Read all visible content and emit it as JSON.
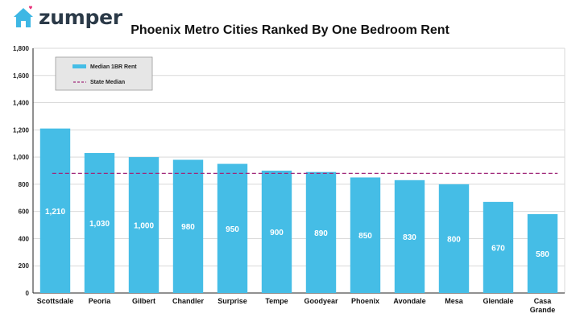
{
  "brand": {
    "name": "zumper",
    "icon": "house-heart-icon",
    "heart_color": "#e8317a",
    "house_color": "#3eb7e4"
  },
  "chart_data": {
    "type": "bar",
    "title": "Phoenix Metro Cities Ranked By One Bedroom Rent",
    "categories": [
      "Scottsdale",
      "Peoria",
      "Gilbert",
      "Chandler",
      "Surprise",
      "Tempe",
      "Goodyear",
      "Phoenix",
      "Avondale",
      "Mesa",
      "Glendale",
      "Casa Grande"
    ],
    "series": [
      {
        "name": "Median 1BR Rent",
        "values": [
          1210,
          1030,
          1000,
          980,
          950,
          900,
          890,
          850,
          830,
          800,
          670,
          580
        ],
        "color": "#45bde6"
      }
    ],
    "reference_line": {
      "name": "State Median",
      "value": 880,
      "color": "#a0287a",
      "style": "dashed"
    },
    "data_labels": [
      "1,210",
      "1,030",
      "1,000",
      "980",
      "950",
      "900",
      "890",
      "850",
      "830",
      "800",
      "670",
      "580"
    ],
    "yticks": [
      0,
      200,
      400,
      600,
      800,
      1000,
      1200,
      1400,
      1600,
      1800
    ],
    "ytick_labels": [
      "0",
      "200",
      "400",
      "600",
      "800",
      "1,000",
      "1,200",
      "1,400",
      "1,600",
      "1,800"
    ],
    "ylim": [
      0,
      1800
    ],
    "xlabel": "",
    "ylabel": "",
    "grid": true,
    "legend_position": "top-left"
  }
}
